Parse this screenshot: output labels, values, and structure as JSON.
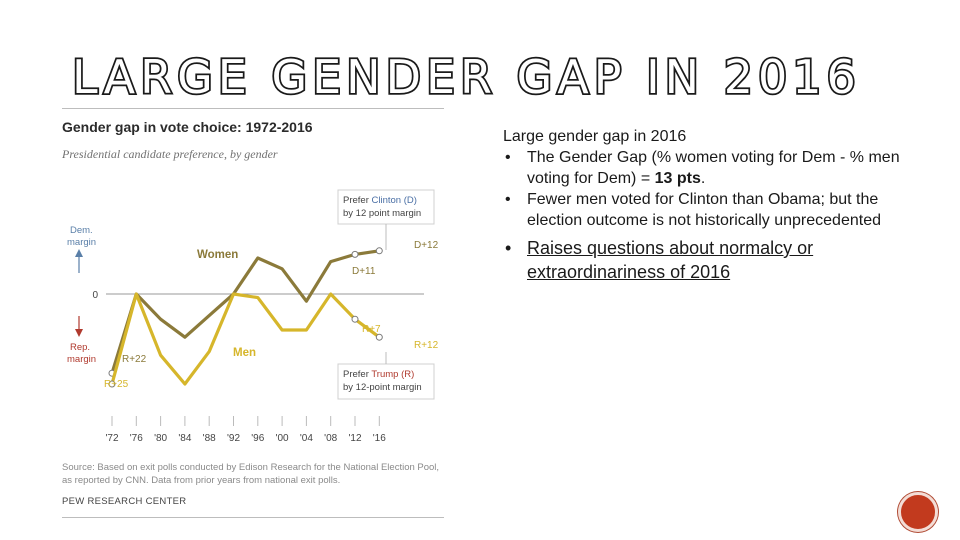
{
  "slide": {
    "title": "LARGE GENDER GAP IN 2016"
  },
  "notes": {
    "lead": "Large gender gap in 2016",
    "bullets": [
      {
        "text": "The Gender Gap (% women voting for Dem - % men voting for Dem) = ",
        "bold": "13 pts",
        "after": "."
      },
      {
        "text": "Fewer men voted for Clinton than Obama; but the election outcome is not historically unprecedented"
      },
      {
        "text": "Raises questions about normalcy or extraordinariness of 2016"
      }
    ],
    "bullet_char": "•"
  },
  "chart_data": {
    "type": "line",
    "title": "Gender gap in vote choice: 1972-2016",
    "subtitle": "Presidential candidate preference, by gender",
    "x": [
      "'72",
      "'76",
      "'80",
      "'84",
      "'88",
      "'92",
      "'96",
      "'00",
      "'04",
      "'08",
      "'12",
      "'16"
    ],
    "ylim": [
      -30,
      25
    ],
    "zero_label": "0",
    "series": [
      {
        "name": "Women",
        "color": "#8b7a3a",
        "values": [
          -22,
          0,
          -7,
          -12,
          -6,
          0,
          10,
          7,
          -2,
          9,
          11,
          12
        ]
      },
      {
        "name": "Men",
        "color": "#d6b62b",
        "values": [
          -25,
          0,
          -17,
          -25,
          -16,
          0,
          -1,
          -10,
          -10,
          0,
          -7,
          -12
        ]
      }
    ],
    "axis_annotations": {
      "dem": [
        "Dem.",
        "margin"
      ],
      "rep": [
        "Rep.",
        "margin"
      ]
    },
    "point_labels": [
      {
        "text": "D+12",
        "series": "Women",
        "x": "'16"
      },
      {
        "text": "D+11",
        "series": "Women",
        "x": "'12"
      },
      {
        "text": "R+7",
        "series": "Men",
        "x": "'12"
      },
      {
        "text": "R+12",
        "series": "Men",
        "x": "'16"
      },
      {
        "text": "R+22",
        "series": "Women",
        "x": "'72"
      },
      {
        "text": "R+25",
        "series": "Men",
        "x": "'72"
      }
    ],
    "callouts": [
      {
        "prefix": "Prefer ",
        "name": "Clinton (D)",
        "name_color": "#4a6fa5",
        "line2": "by 12 point margin"
      },
      {
        "prefix": "Prefer ",
        "name": "Trump (R)",
        "name_color": "#b03a2e",
        "line2": "by 12-point margin"
      }
    ],
    "source": "Source: Based on exit polls conducted by Edison Research for the National Election Pool, as reported by CNN. Data from prior years from national exit polls.",
    "credit": "PEW RESEARCH CENTER"
  }
}
